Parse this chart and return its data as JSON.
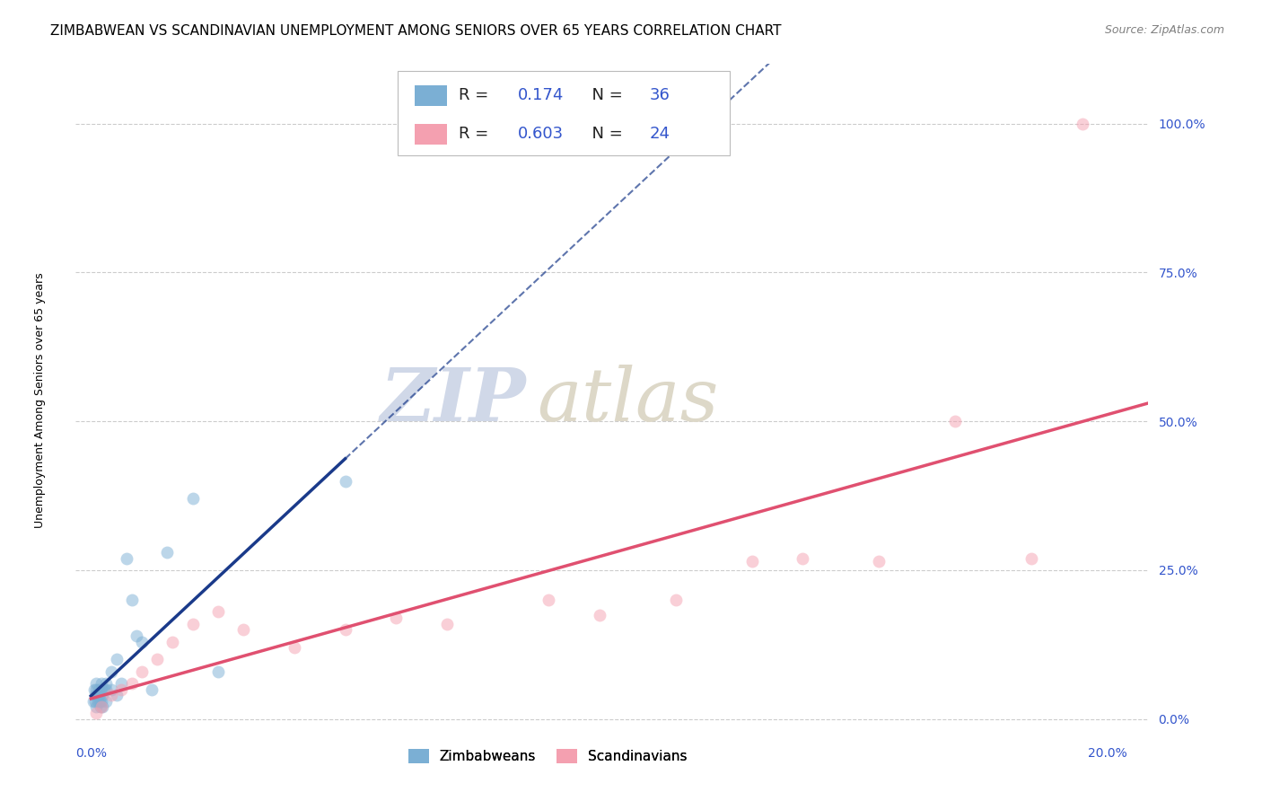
{
  "title": "ZIMBABWEAN VS SCANDINAVIAN UNEMPLOYMENT AMONG SENIORS OVER 65 YEARS CORRELATION CHART",
  "source": "Source: ZipAtlas.com",
  "ylabel": "Unemployment Among Seniors over 65 years",
  "xlabel_ticks_labels": [
    "0.0%",
    "20.0%"
  ],
  "xlabel_ticks_vals": [
    0.0,
    0.2
  ],
  "ylabel_ticks_labels": [
    "100.0%",
    "75.0%",
    "50.0%",
    "25.0%",
    "0.0%"
  ],
  "ylabel_ticks_vals": [
    1.0,
    0.75,
    0.5,
    0.25,
    0.0
  ],
  "xlim": [
    -0.003,
    0.208
  ],
  "ylim": [
    -0.03,
    1.1
  ],
  "legend_labels": [
    "Zimbabweans",
    "Scandinavians"
  ],
  "R_zimbabwean": 0.174,
  "N_zimbabwean": 36,
  "R_scandinavian": 0.603,
  "N_scandinavian": 24,
  "zimbabwean_color": "#7bafd4",
  "scandinavian_color": "#f4a0b0",
  "zimbabwean_line_color": "#1a3a8a",
  "scandinavian_line_color": "#e05070",
  "background_color": "#ffffff",
  "watermark_zip": "ZIP",
  "watermark_atlas": "atlas",
  "title_fontsize": 11,
  "source_fontsize": 9,
  "axis_label_fontsize": 9,
  "tick_fontsize": 10,
  "legend_fontsize": 13,
  "watermark_fontsize_zip": 60,
  "watermark_fontsize_atlas": 60,
  "marker_size": 100,
  "marker_alpha": 0.5,
  "line_width": 2.5,
  "zimbabwean_x": [
    0.0005,
    0.0007,
    0.0008,
    0.0009,
    0.001,
    0.001,
    0.001,
    0.0012,
    0.0013,
    0.0015,
    0.0016,
    0.0017,
    0.0018,
    0.002,
    0.002,
    0.002,
    0.0022,
    0.0023,
    0.0025,
    0.003,
    0.003,
    0.003,
    0.004,
    0.004,
    0.005,
    0.005,
    0.006,
    0.007,
    0.008,
    0.009,
    0.01,
    0.012,
    0.015,
    0.02,
    0.025,
    0.05
  ],
  "zimbabwean_y": [
    0.03,
    0.05,
    0.04,
    0.03,
    0.06,
    0.05,
    0.02,
    0.04,
    0.03,
    0.05,
    0.04,
    0.03,
    0.02,
    0.06,
    0.05,
    0.03,
    0.04,
    0.02,
    0.05,
    0.06,
    0.05,
    0.03,
    0.08,
    0.05,
    0.1,
    0.04,
    0.06,
    0.27,
    0.2,
    0.14,
    0.13,
    0.05,
    0.28,
    0.37,
    0.08,
    0.4
  ],
  "scandinavian_x": [
    0.001,
    0.002,
    0.004,
    0.006,
    0.008,
    0.01,
    0.013,
    0.016,
    0.02,
    0.025,
    0.03,
    0.04,
    0.05,
    0.06,
    0.07,
    0.09,
    0.1,
    0.115,
    0.13,
    0.14,
    0.155,
    0.17,
    0.185,
    0.195
  ],
  "scandinavian_y": [
    0.01,
    0.02,
    0.04,
    0.05,
    0.06,
    0.08,
    0.1,
    0.13,
    0.16,
    0.18,
    0.15,
    0.12,
    0.15,
    0.17,
    0.16,
    0.2,
    0.175,
    0.2,
    0.265,
    0.27,
    0.265,
    0.5,
    0.27,
    1.0
  ]
}
